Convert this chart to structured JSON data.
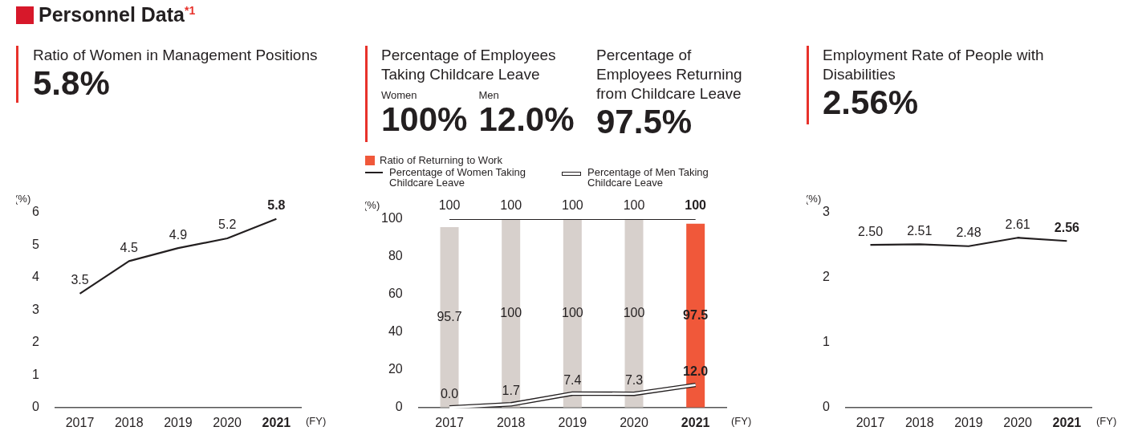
{
  "chart_data": [
    {
      "type": "line",
      "title": "Ratio of Women in Management Positions",
      "annotations": [
        "Personnel Data$^{*1}$",
        "5.8%"
      ],
      "categories": [
        "2017",
        "2018",
        "2019",
        "2020",
        "2021"
      ],
      "series": [
        {
          "color": "#231f20",
          "values": [
            3.5,
            4.5,
            4.9,
            5.2,
            5.8
          ]
        }
      ],
      "ylabel": "(%)",
      "xlabel": "(FY)",
      "ylim": [
        0,
        6
      ],
      "yticks": [
        0,
        1,
        2,
        3,
        4,
        5,
        6
      ],
      "grid": false,
      "marker": "none",
      "data_labels": true
    },
    {
      "type": "bar",
      "title": "Percentage of Employees Taking Childcare Leave",
      "annotations": [
        "Women",
        "100%",
        "Men",
        "12.0%",
        "Percentage of Employees Returning from Childcare Leave",
        "97.5%"
      ],
      "categories": [
        "2017",
        "2018",
        "2019",
        "2020",
        "2021"
      ],
      "series": [
        {
          "name": "Ratio of Returning to Work",
          "color": "#f0583a",
          "colors": [
            "#d7d0cc",
            "#d7d0cc",
            "#d7d0cc",
            "#d7d0cc",
            "#f0583a"
          ],
          "values": [
            95.7,
            100,
            100,
            100,
            97.5
          ],
          "value_labels": [
            "95.7",
            "100",
            "100",
            "100",
            "97.5"
          ]
        },
        {
          "type": "line",
          "name": "Percentage of Women Taking Childcare Leave",
          "color": "#231f20",
          "values": [
            100,
            100,
            100,
            100,
            100
          ],
          "value_labels": [
            "100",
            "100",
            "100",
            "100",
            "100"
          ]
        },
        {
          "type": "line",
          "name": "Percentage of Men Taking Childcare Leave",
          "color": "#231f20",
          "values": [
            0.0,
            1.7,
            7.4,
            7.3,
            12.0
          ],
          "value_labels": [
            "0.0",
            "1.7",
            "7.4",
            "7.3",
            "12.0"
          ]
        }
      ],
      "ylabel": "(%)",
      "xlabel": "(FY)",
      "ylim": [
        0,
        100
      ],
      "yticks": [
        0,
        20,
        40,
        60,
        80,
        100
      ],
      "grid": false,
      "marker": "none",
      "legend": "top left"
    },
    {
      "type": "line",
      "title": "Employment Rate of People with Disabilities",
      "annotations": [
        "2.56%"
      ],
      "categories": [
        "2017",
        "2018",
        "2019",
        "2020",
        "2021"
      ],
      "series": [
        {
          "color": "#231f20",
          "values": [
            2.5,
            2.51,
            2.48,
            2.61,
            2.56
          ],
          "value_labels": [
            "2.50",
            "2.51",
            "2.48",
            "2.61",
            "2.56"
          ]
        }
      ],
      "ylabel": "(%)",
      "xlabel": "(FY)",
      "ylim": [
        0,
        3
      ],
      "yticks": [
        0,
        1,
        2,
        3
      ],
      "grid": false,
      "marker": "none"
    }
  ]
}
